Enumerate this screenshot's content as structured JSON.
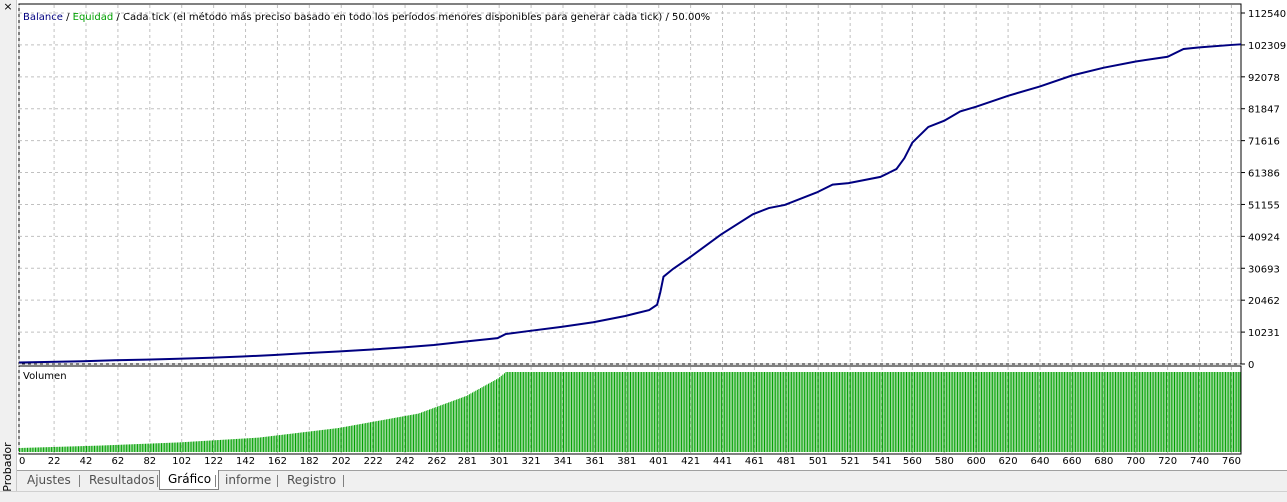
{
  "window": {
    "close_glyph": "×",
    "sidebar_title": "Probador"
  },
  "legend": {
    "balance": "Balance",
    "sep1": " / ",
    "equity": "Equidad",
    "rest": " / Cada tick (el método más preciso basado en todo los períodos menores disponibles para generar cada tick)  / 50.00%"
  },
  "volume_label": "Volumen",
  "tabs": [
    {
      "label": "Ajustes"
    },
    {
      "label": "Resultados"
    },
    {
      "label": "Gráfico",
      "active": true
    },
    {
      "label": "informe"
    },
    {
      "label": "Registro"
    }
  ],
  "colors": {
    "balance_line": "#000080",
    "balance_text": "#000080",
    "equity_text": "#00a000",
    "volume_bars": "#00a000",
    "grid": "#c0c0c0"
  },
  "chart_data": [
    {
      "type": "line",
      "title": "Balance / Equidad",
      "y_ticks": [
        "112540",
        "102309",
        "92078",
        "81847",
        "71616",
        "61386",
        "51155",
        "40924",
        "30693",
        "20462",
        "10231",
        "0"
      ],
      "ylim": [
        0,
        112540
      ],
      "x": [
        0,
        20,
        40,
        60,
        80,
        100,
        120,
        140,
        160,
        180,
        200,
        220,
        240,
        260,
        280,
        300,
        305,
        320,
        340,
        360,
        380,
        395,
        400,
        402,
        404,
        410,
        420,
        440,
        460,
        470,
        480,
        500,
        510,
        520,
        540,
        550,
        555,
        560,
        570,
        580,
        590,
        600,
        620,
        640,
        660,
        680,
        700,
        720,
        730,
        740,
        760,
        766
      ],
      "series": [
        {
          "values": [
            500,
            700,
            900,
            1200,
            1400,
            1700,
            2000,
            2400,
            2900,
            3500,
            4000,
            4600,
            5300,
            6100,
            7200,
            8300,
            9600,
            10600,
            11900,
            13400,
            15400,
            17300,
            19000,
            23000,
            28000,
            30500,
            34000,
            41500,
            48000,
            50000,
            51000,
            55000,
            57500,
            58000,
            60000,
            62500,
            66000,
            71000,
            76000,
            78000,
            81000,
            82500,
            86000,
            89000,
            92500,
            95000,
            97000,
            98500,
            101000,
            101500,
            102300,
            102500
          ]
        }
      ],
      "xlim": [
        0,
        766
      ]
    },
    {
      "type": "bar",
      "title": "Volumen",
      "x_ticks": [
        "0",
        "22",
        "42",
        "62",
        "82",
        "102",
        "122",
        "142",
        "162",
        "182",
        "202",
        "222",
        "242",
        "262",
        "281",
        "301",
        "321",
        "341",
        "361",
        "381",
        "401",
        "421",
        "441",
        "461",
        "481",
        "501",
        "521",
        "541",
        "560",
        "580",
        "600",
        "620",
        "640",
        "660",
        "680",
        "700",
        "720",
        "740",
        "760"
      ],
      "xlim": [
        0,
        766
      ],
      "ylim": [
        0,
        1
      ],
      "bar_count": 766,
      "profile_x": [
        0,
        50,
        100,
        150,
        200,
        250,
        280,
        300,
        305,
        766
      ],
      "profile_y": [
        0.05,
        0.08,
        0.12,
        0.18,
        0.3,
        0.48,
        0.7,
        0.92,
        1.0,
        1.0
      ]
    }
  ]
}
